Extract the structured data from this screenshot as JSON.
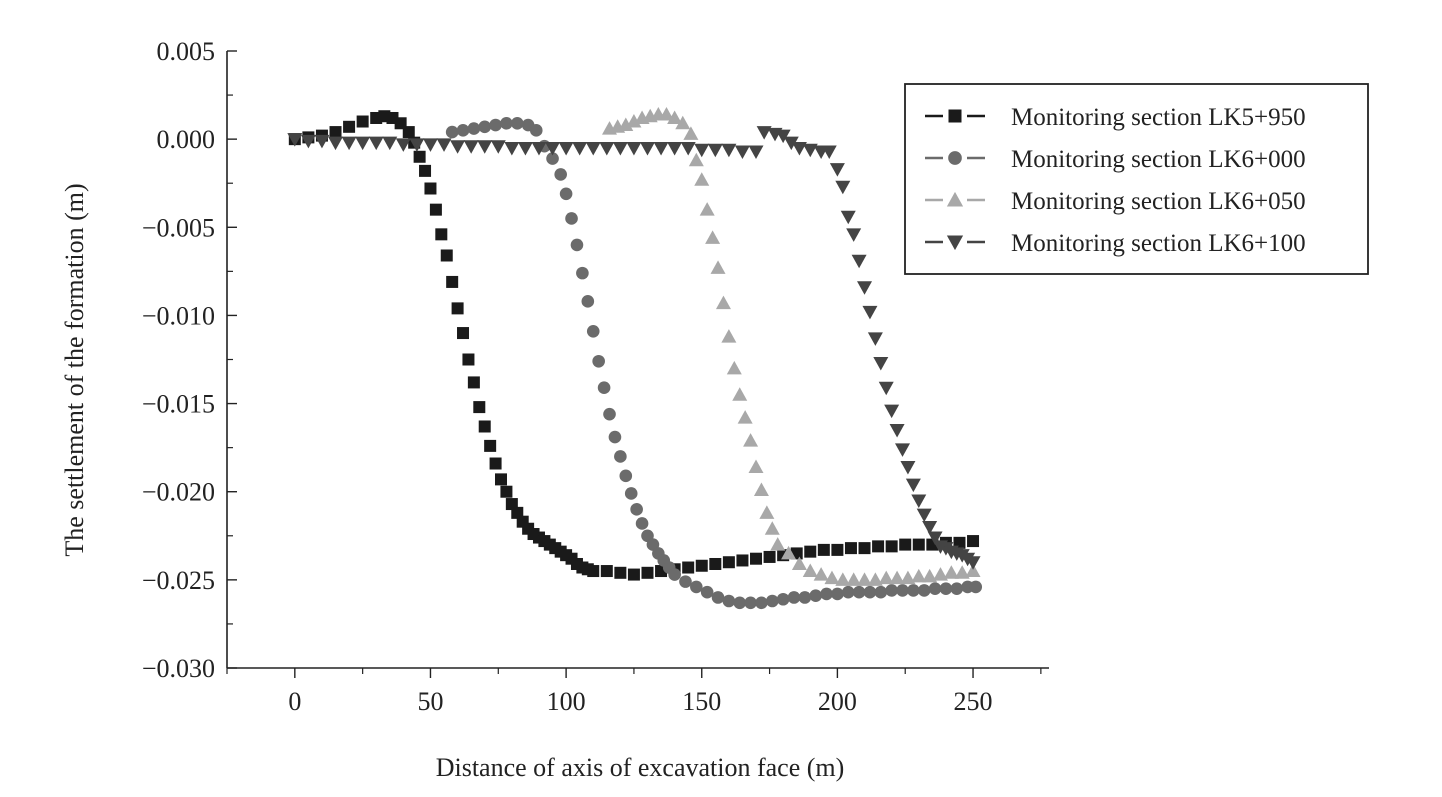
{
  "chart_data": {
    "type": "scatter",
    "xlabel": "Distance of axis of excavation face (m)",
    "ylabel": "The settlement of the formation (m)",
    "xlim": [
      -25,
      278
    ],
    "ylim": [
      -0.03,
      0.005
    ],
    "xticks": [
      0,
      50,
      100,
      150,
      200,
      250
    ],
    "xtick_labels": [
      "0",
      "50",
      "100",
      "150",
      "200",
      "250"
    ],
    "yticks": [
      0.005,
      0.0,
      -0.005,
      -0.01,
      -0.015,
      -0.02,
      -0.025,
      -0.03
    ],
    "ytick_labels": [
      "0.005",
      "0.000",
      "−0.005",
      "−0.010",
      "−0.015",
      "−0.020",
      "−0.025",
      "−0.030"
    ],
    "grid": false,
    "legend_position": "top-right",
    "series": [
      {
        "name": "Monitoring section LK5+950",
        "marker": "square",
        "color": "#1a1a1a",
        "points": [
          [
            0,
            0.0
          ],
          [
            5,
            0.0001
          ],
          [
            10,
            0.0002
          ],
          [
            15,
            0.0004
          ],
          [
            20,
            0.0007
          ],
          [
            25,
            0.001
          ],
          [
            30,
            0.0012
          ],
          [
            33,
            0.0013
          ],
          [
            36,
            0.0012
          ],
          [
            39,
            0.0009
          ],
          [
            42,
            0.0004
          ],
          [
            44,
            -0.0002
          ],
          [
            46,
            -0.001
          ],
          [
            48,
            -0.0018
          ],
          [
            50,
            -0.0028
          ],
          [
            52,
            -0.004
          ],
          [
            54,
            -0.0054
          ],
          [
            56,
            -0.0066
          ],
          [
            58,
            -0.0081
          ],
          [
            60,
            -0.0096
          ],
          [
            62,
            -0.011
          ],
          [
            64,
            -0.0125
          ],
          [
            66,
            -0.0138
          ],
          [
            68,
            -0.0152
          ],
          [
            70,
            -0.0163
          ],
          [
            72,
            -0.0174
          ],
          [
            74,
            -0.0184
          ],
          [
            76,
            -0.0193
          ],
          [
            78,
            -0.02
          ],
          [
            80,
            -0.0207
          ],
          [
            82,
            -0.0212
          ],
          [
            84,
            -0.0217
          ],
          [
            86,
            -0.0221
          ],
          [
            88,
            -0.0224
          ],
          [
            90,
            -0.0226
          ],
          [
            92,
            -0.0228
          ],
          [
            94,
            -0.023
          ],
          [
            96,
            -0.0232
          ],
          [
            98,
            -0.0234
          ],
          [
            100,
            -0.0236
          ],
          [
            102,
            -0.0238
          ],
          [
            104,
            -0.0241
          ],
          [
            106,
            -0.0243
          ],
          [
            108,
            -0.0244
          ],
          [
            110,
            -0.0245
          ],
          [
            115,
            -0.0245
          ],
          [
            120,
            -0.0246
          ],
          [
            125,
            -0.0247
          ],
          [
            130,
            -0.0246
          ],
          [
            135,
            -0.0245
          ],
          [
            140,
            -0.0244
          ],
          [
            145,
            -0.0243
          ],
          [
            150,
            -0.0242
          ],
          [
            155,
            -0.0241
          ],
          [
            160,
            -0.024
          ],
          [
            165,
            -0.0239
          ],
          [
            170,
            -0.0238
          ],
          [
            175,
            -0.0237
          ],
          [
            180,
            -0.0236
          ],
          [
            185,
            -0.0235
          ],
          [
            190,
            -0.0234
          ],
          [
            195,
            -0.0233
          ],
          [
            200,
            -0.0233
          ],
          [
            205,
            -0.0232
          ],
          [
            210,
            -0.0232
          ],
          [
            215,
            -0.0231
          ],
          [
            220,
            -0.0231
          ],
          [
            225,
            -0.023
          ],
          [
            230,
            -0.023
          ],
          [
            235,
            -0.023
          ],
          [
            240,
            -0.0229
          ],
          [
            245,
            -0.0229
          ],
          [
            250,
            -0.0228
          ]
        ]
      },
      {
        "name": "Monitoring section LK6+000",
        "marker": "circle",
        "color": "#6b6b6b",
        "points": [
          [
            58,
            0.0004
          ],
          [
            62,
            0.0005
          ],
          [
            66,
            0.0006
          ],
          [
            70,
            0.0007
          ],
          [
            74,
            0.0008
          ],
          [
            78,
            0.0009
          ],
          [
            82,
            0.0009
          ],
          [
            86,
            0.0008
          ],
          [
            89,
            0.0005
          ],
          [
            92,
            -0.0004
          ],
          [
            95,
            -0.0011
          ],
          [
            98,
            -0.002
          ],
          [
            100,
            -0.0031
          ],
          [
            102,
            -0.0045
          ],
          [
            104,
            -0.006
          ],
          [
            106,
            -0.0076
          ],
          [
            108,
            -0.0092
          ],
          [
            110,
            -0.0109
          ],
          [
            112,
            -0.0126
          ],
          [
            114,
            -0.0141
          ],
          [
            116,
            -0.0156
          ],
          [
            118,
            -0.0169
          ],
          [
            120,
            -0.018
          ],
          [
            122,
            -0.0191
          ],
          [
            124,
            -0.0201
          ],
          [
            126,
            -0.021
          ],
          [
            128,
            -0.0218
          ],
          [
            130,
            -0.0225
          ],
          [
            132,
            -0.023
          ],
          [
            134,
            -0.0235
          ],
          [
            136,
            -0.0239
          ],
          [
            138,
            -0.0243
          ],
          [
            140,
            -0.0247
          ],
          [
            144,
            -0.0251
          ],
          [
            148,
            -0.0254
          ],
          [
            152,
            -0.0257
          ],
          [
            156,
            -0.026
          ],
          [
            160,
            -0.0262
          ],
          [
            164,
            -0.0263
          ],
          [
            168,
            -0.0263
          ],
          [
            172,
            -0.0263
          ],
          [
            176,
            -0.0262
          ],
          [
            180,
            -0.0261
          ],
          [
            184,
            -0.026
          ],
          [
            188,
            -0.026
          ],
          [
            192,
            -0.0259
          ],
          [
            196,
            -0.0258
          ],
          [
            200,
            -0.0258
          ],
          [
            204,
            -0.0257
          ],
          [
            208,
            -0.0257
          ],
          [
            212,
            -0.0257
          ],
          [
            216,
            -0.0257
          ],
          [
            220,
            -0.0256
          ],
          [
            224,
            -0.0256
          ],
          [
            228,
            -0.0256
          ],
          [
            232,
            -0.0256
          ],
          [
            236,
            -0.0255
          ],
          [
            240,
            -0.0255
          ],
          [
            244,
            -0.0255
          ],
          [
            248,
            -0.0254
          ],
          [
            251,
            -0.0254
          ]
        ]
      },
      {
        "name": "Monitoring section LK6+050",
        "marker": "triangle-up",
        "color": "#a8a8a8",
        "points": [
          [
            116,
            0.0006
          ],
          [
            119,
            0.0007
          ],
          [
            122,
            0.0008
          ],
          [
            125,
            0.001
          ],
          [
            128,
            0.0012
          ],
          [
            131,
            0.0013
          ],
          [
            134,
            0.0014
          ],
          [
            137,
            0.0014
          ],
          [
            140,
            0.0012
          ],
          [
            143,
            0.0009
          ],
          [
            146,
            0.0003
          ],
          [
            148,
            -0.0012
          ],
          [
            150,
            -0.0023
          ],
          [
            152,
            -0.004
          ],
          [
            154,
            -0.0056
          ],
          [
            156,
            -0.0073
          ],
          [
            158,
            -0.0093
          ],
          [
            160,
            -0.0112
          ],
          [
            162,
            -0.013
          ],
          [
            164,
            -0.0145
          ],
          [
            166,
            -0.0158
          ],
          [
            168,
            -0.0171
          ],
          [
            170,
            -0.0186
          ],
          [
            172,
            -0.0199
          ],
          [
            174,
            -0.0212
          ],
          [
            176,
            -0.0221
          ],
          [
            178,
            -0.023
          ],
          [
            182,
            -0.0235
          ],
          [
            186,
            -0.0241
          ],
          [
            190,
            -0.0245
          ],
          [
            194,
            -0.0247
          ],
          [
            198,
            -0.0249
          ],
          [
            202,
            -0.025
          ],
          [
            206,
            -0.025
          ],
          [
            210,
            -0.025
          ],
          [
            214,
            -0.025
          ],
          [
            218,
            -0.0249
          ],
          [
            222,
            -0.0249
          ],
          [
            226,
            -0.0249
          ],
          [
            230,
            -0.0248
          ],
          [
            234,
            -0.0248
          ],
          [
            238,
            -0.0247
          ],
          [
            242,
            -0.0246
          ],
          [
            246,
            -0.0246
          ],
          [
            250,
            -0.0245
          ]
        ]
      },
      {
        "name": "Monitoring section LK6+100",
        "marker": "triangle-down",
        "color": "#444444",
        "points": [
          [
            0,
            0.0
          ],
          [
            5,
            -0.0001
          ],
          [
            10,
            -0.0001
          ],
          [
            15,
            -0.0002
          ],
          [
            20,
            -0.0002
          ],
          [
            25,
            -0.0002
          ],
          [
            30,
            -0.0002
          ],
          [
            35,
            -0.0002
          ],
          [
            40,
            -0.0003
          ],
          [
            45,
            -0.0003
          ],
          [
            50,
            -0.0003
          ],
          [
            55,
            -0.0003
          ],
          [
            60,
            -0.0004
          ],
          [
            65,
            -0.0004
          ],
          [
            70,
            -0.0004
          ],
          [
            75,
            -0.0004
          ],
          [
            80,
            -0.0005
          ],
          [
            85,
            -0.0005
          ],
          [
            90,
            -0.0005
          ],
          [
            95,
            -0.0005
          ],
          [
            100,
            -0.0005
          ],
          [
            105,
            -0.0005
          ],
          [
            110,
            -0.0005
          ],
          [
            115,
            -0.0005
          ],
          [
            120,
            -0.0005
          ],
          [
            125,
            -0.0005
          ],
          [
            130,
            -0.0005
          ],
          [
            135,
            -0.0005
          ],
          [
            140,
            -0.0005
          ],
          [
            145,
            -0.0005
          ],
          [
            150,
            -0.0006
          ],
          [
            155,
            -0.0006
          ],
          [
            160,
            -0.0006
          ],
          [
            165,
            -0.0007
          ],
          [
            170,
            -0.0007
          ],
          [
            173,
            0.0004
          ],
          [
            177,
            0.0003
          ],
          [
            180,
            0.0002
          ],
          [
            183,
            -0.0002
          ],
          [
            186,
            -0.0005
          ],
          [
            190,
            -0.0006
          ],
          [
            194,
            -0.0007
          ],
          [
            197,
            -0.0007
          ],
          [
            200,
            -0.0017
          ],
          [
            202,
            -0.0027
          ],
          [
            204,
            -0.0044
          ],
          [
            206,
            -0.0054
          ],
          [
            208,
            -0.0069
          ],
          [
            210,
            -0.0084
          ],
          [
            212,
            -0.0098
          ],
          [
            214,
            -0.0113
          ],
          [
            216,
            -0.0127
          ],
          [
            218,
            -0.0141
          ],
          [
            220,
            -0.0154
          ],
          [
            222,
            -0.0165
          ],
          [
            224,
            -0.0176
          ],
          [
            226,
            -0.0186
          ],
          [
            228,
            -0.0196
          ],
          [
            230,
            -0.0205
          ],
          [
            232,
            -0.0213
          ],
          [
            234,
            -0.022
          ],
          [
            236,
            -0.0226
          ],
          [
            238,
            -0.0231
          ],
          [
            240,
            -0.0232
          ],
          [
            242,
            -0.0234
          ],
          [
            244,
            -0.0235
          ],
          [
            246,
            -0.0236
          ],
          [
            248,
            -0.0238
          ],
          [
            250,
            -0.024
          ]
        ]
      }
    ]
  }
}
